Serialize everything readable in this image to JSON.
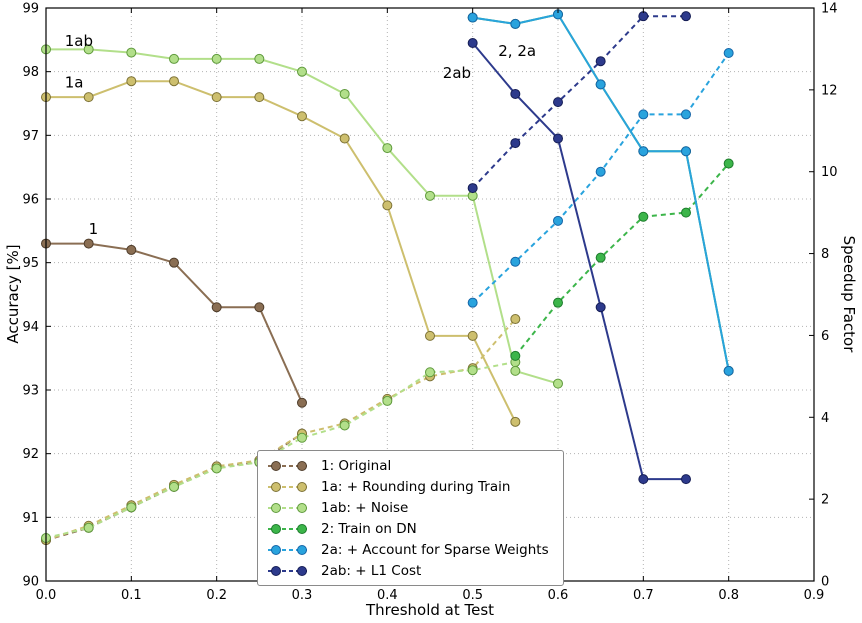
{
  "chart_data": {
    "type": "line",
    "title": "",
    "xlabel": "Threshold at Test",
    "ylabel_left": "Accuracy [%]",
    "ylabel_right": "Speedup Factor",
    "xlim": [
      0.0,
      0.9
    ],
    "ylim_left": [
      90,
      99
    ],
    "ylim_right": [
      0,
      14
    ],
    "x_ticks": [
      0.0,
      0.1,
      0.2,
      0.3,
      0.4,
      0.5,
      0.6,
      0.7,
      0.8,
      0.9
    ],
    "y_ticks_left": [
      90,
      91,
      92,
      93,
      94,
      95,
      96,
      97,
      98,
      99
    ],
    "y_ticks_right": [
      0,
      2,
      4,
      6,
      8,
      10,
      12,
      14
    ],
    "grid": true,
    "line_style_note": "solid = accuracy (left axis), dashed = speedup factor (right axis)",
    "legend_position": "lower-center",
    "series": [
      {
        "id": "1",
        "label": "1: Original",
        "color": "#8a6e53",
        "edge": "#4f3d2b",
        "accuracy": {
          "x": [
            0.0,
            0.05,
            0.1,
            0.15,
            0.2,
            0.25,
            0.3
          ],
          "y": [
            95.3,
            95.3,
            95.2,
            95.0,
            94.3,
            94.3,
            92.8
          ]
        },
        "speedup": {
          "x": [
            0.0,
            0.05,
            0.1,
            0.15,
            0.2,
            0.25,
            0.3
          ],
          "y": [
            1.0,
            1.3,
            1.8,
            2.3,
            2.8,
            2.9,
            3.6
          ]
        }
      },
      {
        "id": "1a",
        "label": "1a: + Rounding during Train",
        "color": "#cdbf6e",
        "edge": "#7d7236",
        "accuracy": {
          "x": [
            0.0,
            0.05,
            0.1,
            0.15,
            0.2,
            0.25,
            0.3,
            0.35,
            0.4,
            0.45,
            0.5,
            0.55
          ],
          "y": [
            97.6,
            97.6,
            97.85,
            97.85,
            97.6,
            97.6,
            97.3,
            96.95,
            95.9,
            93.85,
            93.85,
            92.5
          ]
        },
        "speedup": {
          "x": [
            0.0,
            0.05,
            0.1,
            0.15,
            0.2,
            0.25,
            0.3,
            0.35,
            0.4,
            0.45,
            0.5,
            0.55
          ],
          "y": [
            1.0,
            1.35,
            1.85,
            2.35,
            2.8,
            2.95,
            3.6,
            3.85,
            4.45,
            5.0,
            5.2,
            6.4
          ]
        }
      },
      {
        "id": "1ab",
        "label": "1ab: + Noise",
        "color": "#b2df8a",
        "edge": "#5f9a3c",
        "accuracy": {
          "x": [
            0.0,
            0.05,
            0.1,
            0.15,
            0.2,
            0.25,
            0.3,
            0.35,
            0.4,
            0.45,
            0.5,
            0.55,
            0.6
          ],
          "y": [
            98.35,
            98.35,
            98.3,
            98.2,
            98.2,
            98.2,
            98.0,
            97.65,
            96.8,
            96.05,
            96.05,
            93.3,
            93.1
          ]
        },
        "speedup": {
          "x": [
            0.0,
            0.05,
            0.1,
            0.15,
            0.2,
            0.25,
            0.3,
            0.35,
            0.4,
            0.45,
            0.5,
            0.55
          ],
          "y": [
            1.05,
            1.3,
            1.8,
            2.3,
            2.75,
            2.9,
            3.5,
            3.8,
            4.4,
            5.1,
            5.15,
            5.35
          ]
        }
      },
      {
        "id": "2",
        "label": "2: Train on DN",
        "color": "#3cb54a",
        "edge": "#1d7c2c",
        "accuracy": {
          "x": [
            0.5,
            0.55,
            0.6,
            0.65,
            0.7,
            0.75,
            0.8
          ],
          "y": [
            98.85,
            98.75,
            98.9,
            97.8,
            96.75,
            96.75,
            93.3
          ]
        },
        "speedup": {
          "x": [
            0.55,
            0.6,
            0.65,
            0.7,
            0.75,
            0.8
          ],
          "y": [
            5.5,
            6.8,
            7.9,
            8.9,
            9.0,
            10.2
          ]
        }
      },
      {
        "id": "2a",
        "label": "2a: + Account for Sparse Weights",
        "color": "#29a3dd",
        "edge": "#1565a8",
        "accuracy": {
          "x": [
            0.5,
            0.55,
            0.6,
            0.65,
            0.7,
            0.75,
            0.8
          ],
          "y": [
            98.85,
            98.75,
            98.9,
            97.8,
            96.75,
            96.75,
            93.3
          ]
        },
        "speedup": {
          "x": [
            0.5,
            0.55,
            0.6,
            0.65,
            0.7,
            0.75,
            0.8
          ],
          "y": [
            6.8,
            7.8,
            8.8,
            10.0,
            11.4,
            11.4,
            12.9
          ]
        }
      },
      {
        "id": "2ab",
        "label": "2ab: + L1 Cost",
        "color": "#2d3a8c",
        "edge": "#151d55",
        "accuracy": {
          "x": [
            0.5,
            0.55,
            0.6,
            0.65,
            0.7,
            0.75
          ],
          "y": [
            98.45,
            97.65,
            96.95,
            94.3,
            91.6,
            91.6
          ]
        },
        "speedup": {
          "x": [
            0.5,
            0.55,
            0.6,
            0.65,
            0.7,
            0.75
          ],
          "y": [
            9.6,
            10.7,
            11.7,
            12.7,
            13.8,
            13.8
          ]
        }
      }
    ],
    "annotations": [
      {
        "text": "1ab",
        "x": 0.022,
        "y": 98.4,
        "color": "#b2df8a"
      },
      {
        "text": "1a",
        "x": 0.022,
        "y": 97.75,
        "color": "#cdbf6e"
      },
      {
        "text": "1",
        "x": 0.05,
        "y": 95.45,
        "color": "#8a6e53"
      },
      {
        "text": "2, 2a",
        "x": 0.53,
        "y": 98.25,
        "color": "#2eb39b"
      },
      {
        "text": "2ab",
        "x": 0.465,
        "y": 97.9,
        "color": "#2d3a8c"
      }
    ]
  }
}
